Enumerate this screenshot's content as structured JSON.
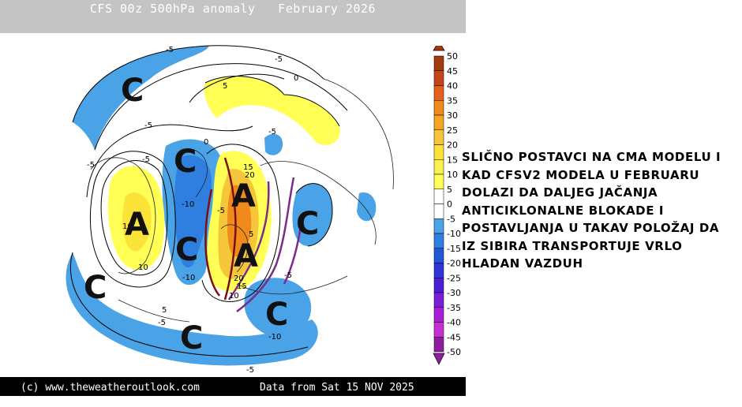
{
  "header": {
    "title": "CFS 00z 500hPa anomaly   February 2026"
  },
  "footer": {
    "credit": "(c) www.theweatheroutlook.com",
    "data_date": "Data from Sat 15 NOV 2025"
  },
  "legend": {
    "ticks": [
      "50",
      "45",
      "40",
      "35",
      "30",
      "25",
      "20",
      "15",
      "10",
      "5",
      "0",
      "-5",
      "-10",
      "-15",
      "-20",
      "-25",
      "-30",
      "-35",
      "-40",
      "-45",
      "-50"
    ],
    "colors": [
      "#a13a10",
      "#c4441b",
      "#e5611a",
      "#f08a1c",
      "#f4a622",
      "#f6c63a",
      "#fbe33a",
      "#fbf04e",
      "#ffff55",
      "#ffffff",
      "#ffffff",
      "#4aa3e6",
      "#2f7fe0",
      "#2357d6",
      "#2f34d6",
      "#4c1fd6",
      "#7a1fd6",
      "#a81fd6",
      "#c82fd2",
      "#8c1f9c"
    ]
  },
  "map": {
    "features": {
      "high_label": "A",
      "low_label": "C"
    },
    "contour_labels": [
      "-5",
      "0",
      "-5",
      "-5",
      "0",
      "5",
      "-5",
      "-10",
      "-10",
      "-5",
      "10",
      "15",
      "20",
      "20",
      "15",
      "10",
      "-5",
      "-10",
      "-5",
      "5",
      "10",
      "5",
      "-5",
      "-5",
      "-5"
    ]
  },
  "annotation": {
    "lines": [
      "SLIČNO POSTAVCI NA CMA MODELU I",
      "KAD CFSV2 MODELA U FEBRUARU",
      "DOLAZI DA DALJEG JAČANJA",
      "ANTICIKLONALNE BLOKADE I",
      "POSTAVLJANJA U TAKAV POLOŽAJ DA",
      "IZ SIBIRA TRANSPORTUJE VRLO",
      "HLADAN VAZDUH"
    ]
  }
}
